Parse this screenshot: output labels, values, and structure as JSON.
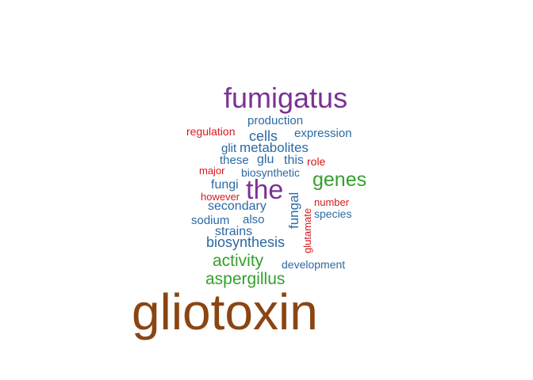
{
  "word_cloud": {
    "colors": {
      "brown": "#8b4513",
      "purple": "#7b3294",
      "green": "#33a02c",
      "blue": "#2b6aa3",
      "red": "#d7191c"
    },
    "words": [
      {
        "text": "gliotoxin",
        "color": "#8b4513",
        "orientation": "horizontal"
      },
      {
        "text": "fumigatus",
        "color": "#7b3294",
        "orientation": "horizontal"
      },
      {
        "text": "the",
        "color": "#7b3294",
        "orientation": "horizontal"
      },
      {
        "text": "genes",
        "color": "#33a02c",
        "orientation": "horizontal"
      },
      {
        "text": "aspergillus",
        "color": "#33a02c",
        "orientation": "horizontal"
      },
      {
        "text": "activity",
        "color": "#33a02c",
        "orientation": "horizontal"
      },
      {
        "text": "biosynthesis",
        "color": "#2b6aa3",
        "orientation": "horizontal"
      },
      {
        "text": "metabolites",
        "color": "#2b6aa3",
        "orientation": "horizontal"
      },
      {
        "text": "cells",
        "color": "#2b6aa3",
        "orientation": "horizontal"
      },
      {
        "text": "production",
        "color": "#2b6aa3",
        "orientation": "horizontal"
      },
      {
        "text": "expression",
        "color": "#2b6aa3",
        "orientation": "horizontal"
      },
      {
        "text": "secondary",
        "color": "#2b6aa3",
        "orientation": "horizontal"
      },
      {
        "text": "strains",
        "color": "#2b6aa3",
        "orientation": "horizontal"
      },
      {
        "text": "fungi",
        "color": "#2b6aa3",
        "orientation": "horizontal"
      },
      {
        "text": "these",
        "color": "#2b6aa3",
        "orientation": "horizontal"
      },
      {
        "text": "glu",
        "color": "#2b6aa3",
        "orientation": "horizontal"
      },
      {
        "text": "this",
        "color": "#2b6aa3",
        "orientation": "horizontal"
      },
      {
        "text": "glit",
        "color": "#2b6aa3",
        "orientation": "horizontal"
      },
      {
        "text": "biosynthetic",
        "color": "#2b6aa3",
        "orientation": "horizontal"
      },
      {
        "text": "also",
        "color": "#2b6aa3",
        "orientation": "horizontal"
      },
      {
        "text": "sodium",
        "color": "#2b6aa3",
        "orientation": "horizontal"
      },
      {
        "text": "species",
        "color": "#2b6aa3",
        "orientation": "horizontal"
      },
      {
        "text": "development",
        "color": "#2b6aa3",
        "orientation": "horizontal"
      },
      {
        "text": "fungal",
        "color": "#2b6aa3",
        "orientation": "vertical"
      },
      {
        "text": "regulation",
        "color": "#d7191c",
        "orientation": "horizontal"
      },
      {
        "text": "major",
        "color": "#d7191c",
        "orientation": "horizontal"
      },
      {
        "text": "role",
        "color": "#d7191c",
        "orientation": "horizontal"
      },
      {
        "text": "however",
        "color": "#d7191c",
        "orientation": "horizontal"
      },
      {
        "text": "number",
        "color": "#d7191c",
        "orientation": "horizontal"
      },
      {
        "text": "glutamate",
        "color": "#d7191c",
        "orientation": "vertical"
      }
    ]
  }
}
